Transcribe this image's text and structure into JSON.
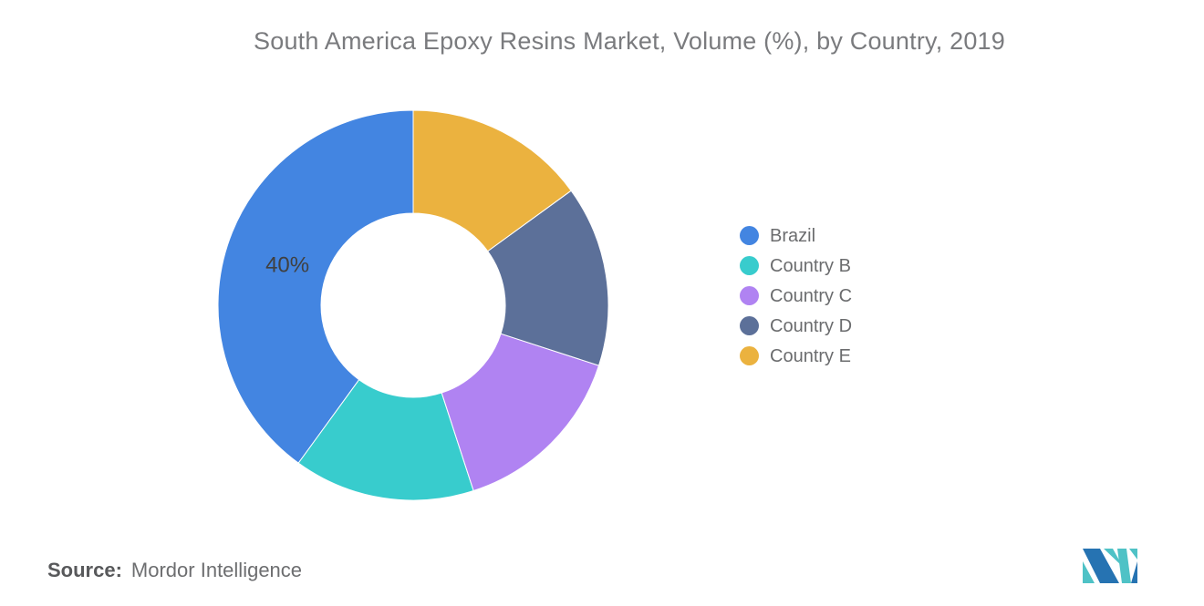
{
  "title": "South America Epoxy Resins Market, Volume (%), by Country, 2019",
  "source": {
    "label": "Source:",
    "text": "Mordor Intelligence"
  },
  "logo": {
    "name": "mordor-intelligence-logo",
    "teal": "#4FC2C6",
    "blue": "#2673B2"
  },
  "chart_data": {
    "type": "pie",
    "subtype": "donut",
    "title": "South America Epoxy Resins Market, Volume (%), by Country, 2019",
    "unit": "%",
    "year": "2019",
    "slices": [
      {
        "label": "Brazil",
        "value": 40,
        "color": "#4385E1",
        "data_label": "40%"
      },
      {
        "label": "Country B",
        "value": 15,
        "color": "#38CCCD",
        "data_label": ""
      },
      {
        "label": "Country C",
        "value": 15,
        "color": "#B083F2",
        "data_label": ""
      },
      {
        "label": "Country D",
        "value": 15,
        "color": "#5C7099",
        "data_label": ""
      },
      {
        "label": "Country E",
        "value": 15,
        "color": "#EBB23F",
        "data_label": ""
      }
    ],
    "start_angle_deg": 0,
    "direction": "counterclockwise",
    "inner_radius_ratio": 0.47,
    "grid": false,
    "legend_position": "right",
    "data_label_color": "#404040"
  }
}
